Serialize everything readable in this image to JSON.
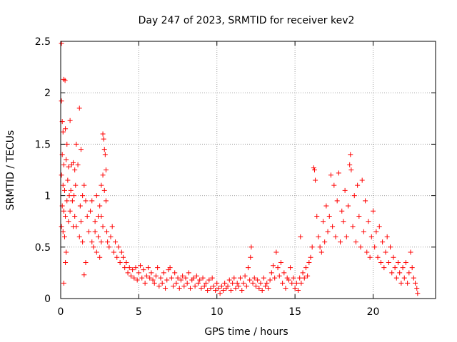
{
  "chart_data": {
    "type": "scatter",
    "title": "Day 247 of 2023, SRMTID for receiver kev2",
    "xlabel": "GPS time / hours",
    "ylabel": "SRMTID / TECUs",
    "xlim": [
      0,
      24
    ],
    "ylim": [
      0,
      2.5
    ],
    "xticks": [
      0,
      5,
      10,
      15,
      20
    ],
    "xtick_labels": [
      "0",
      "5",
      "10",
      "15",
      "20"
    ],
    "yticks": [
      0,
      0.5,
      1,
      1.5,
      2,
      2.5
    ],
    "ytick_labels": [
      "0",
      "0.5",
      "1",
      "1.5",
      "2",
      "2.5"
    ],
    "grid": true,
    "marker": "+",
    "color": "#ff0000",
    "series": [
      {
        "name": "SRMTID kev2",
        "points": [
          [
            0.05,
            2.48
          ],
          [
            0.2,
            2.13
          ],
          [
            0.28,
            2.12
          ],
          [
            0.05,
            1.92
          ],
          [
            0.1,
            1.72
          ],
          [
            0.15,
            1.62
          ],
          [
            0.3,
            1.65
          ],
          [
            0.4,
            1.5
          ],
          [
            0.6,
            1.73
          ],
          [
            1.0,
            1.5
          ],
          [
            1.2,
            1.85
          ],
          [
            1.3,
            1.45
          ],
          [
            0.1,
            1.4
          ],
          [
            0.2,
            1.3
          ],
          [
            0.35,
            1.35
          ],
          [
            0.5,
            1.28
          ],
          [
            0.7,
            1.3
          ],
          [
            0.8,
            1.32
          ],
          [
            0.9,
            1.25
          ],
          [
            1.1,
            1.3
          ],
          [
            1.5,
            1.1
          ],
          [
            0.05,
            1.2
          ],
          [
            0.15,
            1.1
          ],
          [
            0.25,
            1.05
          ],
          [
            0.45,
            1.15
          ],
          [
            0.55,
            1.0
          ],
          [
            0.65,
            1.05
          ],
          [
            0.75,
            0.95
          ],
          [
            0.85,
            1.0
          ],
          [
            0.95,
            1.1
          ],
          [
            1.25,
            0.9
          ],
          [
            1.4,
            1.0
          ],
          [
            1.6,
            0.95
          ],
          [
            0.1,
            0.9
          ],
          [
            0.2,
            0.85
          ],
          [
            0.3,
            0.8
          ],
          [
            0.4,
            0.95
          ],
          [
            0.6,
            0.85
          ],
          [
            0.9,
            0.8
          ],
          [
            1.0,
            0.7
          ],
          [
            1.3,
            0.75
          ],
          [
            1.7,
            0.8
          ],
          [
            0.05,
            0.7
          ],
          [
            0.15,
            0.65
          ],
          [
            0.25,
            0.6
          ],
          [
            0.35,
            0.45
          ],
          [
            0.3,
            0.35
          ],
          [
            0.2,
            0.15
          ],
          [
            0.5,
            0.75
          ],
          [
            0.8,
            0.7
          ],
          [
            1.2,
            0.6
          ],
          [
            1.4,
            0.55
          ],
          [
            1.5,
            0.23
          ],
          [
            1.6,
            0.35
          ],
          [
            1.8,
            0.65
          ],
          [
            1.9,
            0.85
          ],
          [
            2.0,
            0.95
          ],
          [
            2.0,
            0.55
          ],
          [
            2.1,
            0.5
          ],
          [
            2.2,
            0.75
          ],
          [
            2.3,
            0.45
          ],
          [
            2.4,
            0.6
          ],
          [
            2.5,
            0.4
          ],
          [
            2.6,
            0.55
          ],
          [
            2.7,
            1.6
          ],
          [
            2.75,
            1.55
          ],
          [
            2.8,
            1.45
          ],
          [
            2.85,
            1.4
          ],
          [
            2.9,
            1.25
          ],
          [
            2.7,
            1.2
          ],
          [
            2.6,
            1.1
          ],
          [
            2.8,
            1.05
          ],
          [
            2.9,
            0.95
          ],
          [
            2.5,
            0.9
          ],
          [
            2.6,
            0.8
          ],
          [
            2.7,
            0.7
          ],
          [
            2.4,
            0.8
          ],
          [
            2.3,
            1.0
          ],
          [
            2.2,
            0.65
          ],
          [
            2.95,
            0.65
          ],
          [
            3.0,
            0.55
          ],
          [
            3.1,
            0.5
          ],
          [
            3.2,
            0.6
          ],
          [
            3.3,
            0.7
          ],
          [
            3.4,
            0.45
          ],
          [
            3.5,
            0.55
          ],
          [
            3.6,
            0.4
          ],
          [
            3.7,
            0.5
          ],
          [
            3.8,
            0.35
          ],
          [
            3.9,
            0.45
          ],
          [
            4.0,
            0.4
          ],
          [
            4.1,
            0.3
          ],
          [
            4.2,
            0.35
          ],
          [
            4.3,
            0.25
          ],
          [
            4.4,
            0.3
          ],
          [
            4.5,
            0.22
          ],
          [
            4.6,
            0.28
          ],
          [
            4.7,
            0.2
          ],
          [
            4.8,
            0.3
          ],
          [
            4.9,
            0.18
          ],
          [
            5.0,
            0.25
          ],
          [
            5.1,
            0.32
          ],
          [
            5.2,
            0.2
          ],
          [
            5.3,
            0.28
          ],
          [
            5.4,
            0.15
          ],
          [
            5.5,
            0.22
          ],
          [
            5.6,
            0.3
          ],
          [
            5.7,
            0.2
          ],
          [
            5.8,
            0.25
          ],
          [
            5.9,
            0.18
          ],
          [
            6.0,
            0.15
          ],
          [
            6.1,
            0.22
          ],
          [
            6.2,
            0.3
          ],
          [
            6.3,
            0.12
          ],
          [
            6.4,
            0.2
          ],
          [
            6.5,
            0.15
          ],
          [
            6.6,
            0.25
          ],
          [
            6.7,
            0.1
          ],
          [
            6.8,
            0.18
          ],
          [
            6.9,
            0.28
          ],
          [
            7.0,
            0.3
          ],
          [
            7.1,
            0.2
          ],
          [
            7.2,
            0.12
          ],
          [
            7.3,
            0.25
          ],
          [
            7.4,
            0.15
          ],
          [
            7.5,
            0.2
          ],
          [
            7.6,
            0.1
          ],
          [
            7.7,
            0.18
          ],
          [
            7.8,
            0.22
          ],
          [
            7.9,
            0.12
          ],
          [
            8.0,
            0.2
          ],
          [
            8.1,
            0.15
          ],
          [
            8.2,
            0.25
          ],
          [
            8.3,
            0.1
          ],
          [
            8.4,
            0.18
          ],
          [
            8.5,
            0.2
          ],
          [
            8.6,
            0.12
          ],
          [
            8.7,
            0.22
          ],
          [
            8.8,
            0.15
          ],
          [
            8.9,
            0.18
          ],
          [
            9.0,
            0.1
          ],
          [
            9.1,
            0.2
          ],
          [
            9.2,
            0.12
          ],
          [
            9.3,
            0.15
          ],
          [
            9.4,
            0.08
          ],
          [
            9.5,
            0.18
          ],
          [
            9.6,
            0.1
          ],
          [
            9.7,
            0.2
          ],
          [
            9.8,
            0.12
          ],
          [
            9.9,
            0.08
          ],
          [
            10.0,
            0.15
          ],
          [
            10.1,
            0.1
          ],
          [
            10.2,
            0.05
          ],
          [
            10.3,
            0.12
          ],
          [
            10.4,
            0.08
          ],
          [
            10.5,
            0.15
          ],
          [
            10.6,
            0.1
          ],
          [
            10.7,
            0.12
          ],
          [
            10.8,
            0.18
          ],
          [
            10.9,
            0.08
          ],
          [
            11.0,
            0.15
          ],
          [
            11.1,
            0.2
          ],
          [
            11.2,
            0.1
          ],
          [
            11.3,
            0.15
          ],
          [
            11.4,
            0.12
          ],
          [
            11.5,
            0.2
          ],
          [
            11.6,
            0.08
          ],
          [
            11.7,
            0.15
          ],
          [
            11.8,
            0.22
          ],
          [
            11.9,
            0.12
          ],
          [
            12.0,
            0.3
          ],
          [
            12.1,
            0.18
          ],
          [
            12.15,
            0.4
          ],
          [
            12.2,
            0.5
          ],
          [
            12.3,
            0.15
          ],
          [
            12.4,
            0.2
          ],
          [
            12.5,
            0.12
          ],
          [
            12.6,
            0.18
          ],
          [
            12.7,
            0.1
          ],
          [
            12.8,
            0.15
          ],
          [
            12.9,
            0.08
          ],
          [
            13.0,
            0.2
          ],
          [
            13.1,
            0.12
          ],
          [
            13.2,
            0.15
          ],
          [
            13.3,
            0.1
          ],
          [
            13.4,
            0.18
          ],
          [
            13.5,
            0.25
          ],
          [
            13.6,
            0.32
          ],
          [
            13.7,
            0.2
          ],
          [
            13.8,
            0.45
          ],
          [
            13.9,
            0.3
          ],
          [
            14.0,
            0.22
          ],
          [
            14.1,
            0.35
          ],
          [
            14.2,
            0.15
          ],
          [
            14.3,
            0.25
          ],
          [
            14.4,
            0.1
          ],
          [
            14.5,
            0.2
          ],
          [
            14.6,
            0.18
          ],
          [
            14.7,
            0.3
          ],
          [
            14.8,
            0.15
          ],
          [
            14.9,
            0.2
          ],
          [
            15.0,
            0.1
          ],
          [
            15.1,
            0.15
          ],
          [
            15.2,
            0.08
          ],
          [
            15.3,
            0.2
          ],
          [
            15.35,
            0.6
          ],
          [
            15.4,
            0.15
          ],
          [
            15.5,
            0.25
          ],
          [
            15.6,
            0.2
          ],
          [
            15.7,
            0.3
          ],
          [
            15.8,
            0.22
          ],
          [
            15.9,
            0.35
          ],
          [
            16.0,
            0.4
          ],
          [
            16.1,
            0.5
          ],
          [
            16.2,
            1.27
          ],
          [
            16.25,
            1.25
          ],
          [
            16.3,
            1.15
          ],
          [
            16.4,
            0.8
          ],
          [
            16.5,
            0.6
          ],
          [
            16.6,
            0.5
          ],
          [
            16.7,
            0.45
          ],
          [
            16.8,
            0.75
          ],
          [
            16.9,
            0.55
          ],
          [
            17.0,
            0.9
          ],
          [
            17.1,
            0.65
          ],
          [
            17.2,
            0.8
          ],
          [
            17.3,
            1.2
          ],
          [
            17.4,
            0.7
          ],
          [
            17.5,
            1.1
          ],
          [
            17.6,
            0.6
          ],
          [
            17.7,
            0.95
          ],
          [
            17.8,
            1.22
          ],
          [
            17.9,
            0.55
          ],
          [
            18.0,
            0.85
          ],
          [
            18.1,
            0.75
          ],
          [
            18.2,
            1.05
          ],
          [
            18.3,
            0.6
          ],
          [
            18.4,
            0.9
          ],
          [
            18.5,
            1.3
          ],
          [
            18.55,
            1.4
          ],
          [
            18.6,
            1.25
          ],
          [
            18.7,
            0.7
          ],
          [
            18.8,
            1.0
          ],
          [
            18.9,
            0.55
          ],
          [
            19.0,
            1.1
          ],
          [
            19.1,
            0.8
          ],
          [
            19.2,
            0.5
          ],
          [
            19.3,
            1.15
          ],
          [
            19.4,
            0.65
          ],
          [
            19.5,
            0.95
          ],
          [
            19.6,
            0.45
          ],
          [
            19.7,
            0.75
          ],
          [
            19.8,
            0.4
          ],
          [
            19.9,
            0.6
          ],
          [
            20.0,
            0.85
          ],
          [
            20.1,
            0.5
          ],
          [
            20.2,
            0.65
          ],
          [
            20.3,
            0.4
          ],
          [
            20.4,
            0.7
          ],
          [
            20.5,
            0.35
          ],
          [
            20.6,
            0.55
          ],
          [
            20.7,
            0.3
          ],
          [
            20.8,
            0.45
          ],
          [
            20.9,
            0.6
          ],
          [
            21.0,
            0.35
          ],
          [
            21.1,
            0.5
          ],
          [
            21.2,
            0.25
          ],
          [
            21.3,
            0.4
          ],
          [
            21.4,
            0.3
          ],
          [
            21.5,
            0.2
          ],
          [
            21.6,
            0.35
          ],
          [
            21.7,
            0.25
          ],
          [
            21.8,
            0.15
          ],
          [
            21.9,
            0.3
          ],
          [
            22.0,
            0.2
          ],
          [
            22.1,
            0.35
          ],
          [
            22.2,
            0.15
          ],
          [
            22.3,
            0.25
          ],
          [
            22.4,
            0.45
          ],
          [
            22.5,
            0.3
          ],
          [
            22.6,
            0.2
          ],
          [
            22.7,
            0.15
          ],
          [
            22.8,
            0.1
          ],
          [
            22.85,
            0.05
          ]
        ]
      }
    ]
  }
}
